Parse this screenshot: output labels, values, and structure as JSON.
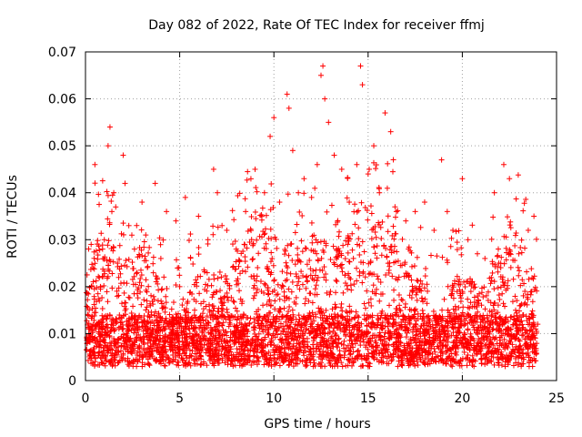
{
  "chart_data": {
    "type": "scatter",
    "title": "Day 082 of 2022, Rate Of TEC Index for receiver ffmj",
    "xlabel": "GPS time / hours",
    "ylabel": "ROTI / TECUs",
    "xlim": [
      0,
      25
    ],
    "ylim": [
      0,
      0.07
    ],
    "xticks": [
      0,
      5,
      10,
      15,
      20,
      25
    ],
    "xtick_labels": [
      "0",
      "5",
      "10",
      "15",
      "20",
      "25"
    ],
    "yticks": [
      0,
      0.01,
      0.02,
      0.03,
      0.04,
      0.05,
      0.06,
      0.07
    ],
    "ytick_labels": [
      "0",
      "0.01",
      "0.02",
      "0.03",
      "0.04",
      "0.05",
      "0.06",
      "0.07"
    ],
    "grid": true,
    "marker": "+",
    "color": "#ff0000",
    "series": [
      {
        "name": "ROTI",
        "note": "dense point cloud; values below are representative samples read from the figure (x in hours, y in TECU/min)",
        "points": [
          [
            0.1,
            0.008
          ],
          [
            0.2,
            0.015
          ],
          [
            0.3,
            0.029
          ],
          [
            0.4,
            0.024
          ],
          [
            0.5,
            0.046
          ],
          [
            0.6,
            0.012
          ],
          [
            0.8,
            0.02
          ],
          [
            1.0,
            0.03
          ],
          [
            1.2,
            0.05
          ],
          [
            1.3,
            0.054
          ],
          [
            1.4,
            0.036
          ],
          [
            1.5,
            0.04
          ],
          [
            1.7,
            0.025
          ],
          [
            2.0,
            0.048
          ],
          [
            2.1,
            0.042
          ],
          [
            2.3,
            0.033
          ],
          [
            2.6,
            0.028
          ],
          [
            3.0,
            0.038
          ],
          [
            3.2,
            0.031
          ],
          [
            3.7,
            0.042
          ],
          [
            4.0,
            0.026
          ],
          [
            4.3,
            0.036
          ],
          [
            4.8,
            0.034
          ],
          [
            5.0,
            0.02
          ],
          [
            5.3,
            0.039
          ],
          [
            6.0,
            0.035
          ],
          [
            6.5,
            0.03
          ],
          [
            6.8,
            0.045
          ],
          [
            7.0,
            0.04
          ],
          [
            7.5,
            0.032
          ],
          [
            8.0,
            0.028
          ],
          [
            8.5,
            0.036
          ],
          [
            9.0,
            0.045
          ],
          [
            9.5,
            0.04
          ],
          [
            9.8,
            0.052
          ],
          [
            10.0,
            0.056
          ],
          [
            10.3,
            0.038
          ],
          [
            10.7,
            0.061
          ],
          [
            10.8,
            0.058
          ],
          [
            11.0,
            0.049
          ],
          [
            11.3,
            0.04
          ],
          [
            11.6,
            0.043
          ],
          [
            12.0,
            0.039
          ],
          [
            12.3,
            0.046
          ],
          [
            12.5,
            0.065
          ],
          [
            12.6,
            0.067
          ],
          [
            12.7,
            0.06
          ],
          [
            12.9,
            0.055
          ],
          [
            13.2,
            0.048
          ],
          [
            13.6,
            0.045
          ],
          [
            14.0,
            0.038
          ],
          [
            14.4,
            0.046
          ],
          [
            14.6,
            0.067
          ],
          [
            14.7,
            0.063
          ],
          [
            15.0,
            0.044
          ],
          [
            15.3,
            0.05
          ],
          [
            15.6,
            0.04
          ],
          [
            15.9,
            0.057
          ],
          [
            16.2,
            0.053
          ],
          [
            16.5,
            0.036
          ],
          [
            17.0,
            0.034
          ],
          [
            17.5,
            0.036
          ],
          [
            18.0,
            0.038
          ],
          [
            18.5,
            0.032
          ],
          [
            18.9,
            0.047
          ],
          [
            19.2,
            0.036
          ],
          [
            19.5,
            0.032
          ],
          [
            20.0,
            0.043
          ],
          [
            20.3,
            0.03
          ],
          [
            20.8,
            0.027
          ],
          [
            21.2,
            0.026
          ],
          [
            21.7,
            0.04
          ],
          [
            22.2,
            0.046
          ],
          [
            22.5,
            0.043
          ],
          [
            23.0,
            0.027
          ],
          [
            23.5,
            0.032
          ],
          [
            23.8,
            0.035
          ],
          [
            24.0,
            0.012
          ]
        ]
      }
    ]
  }
}
